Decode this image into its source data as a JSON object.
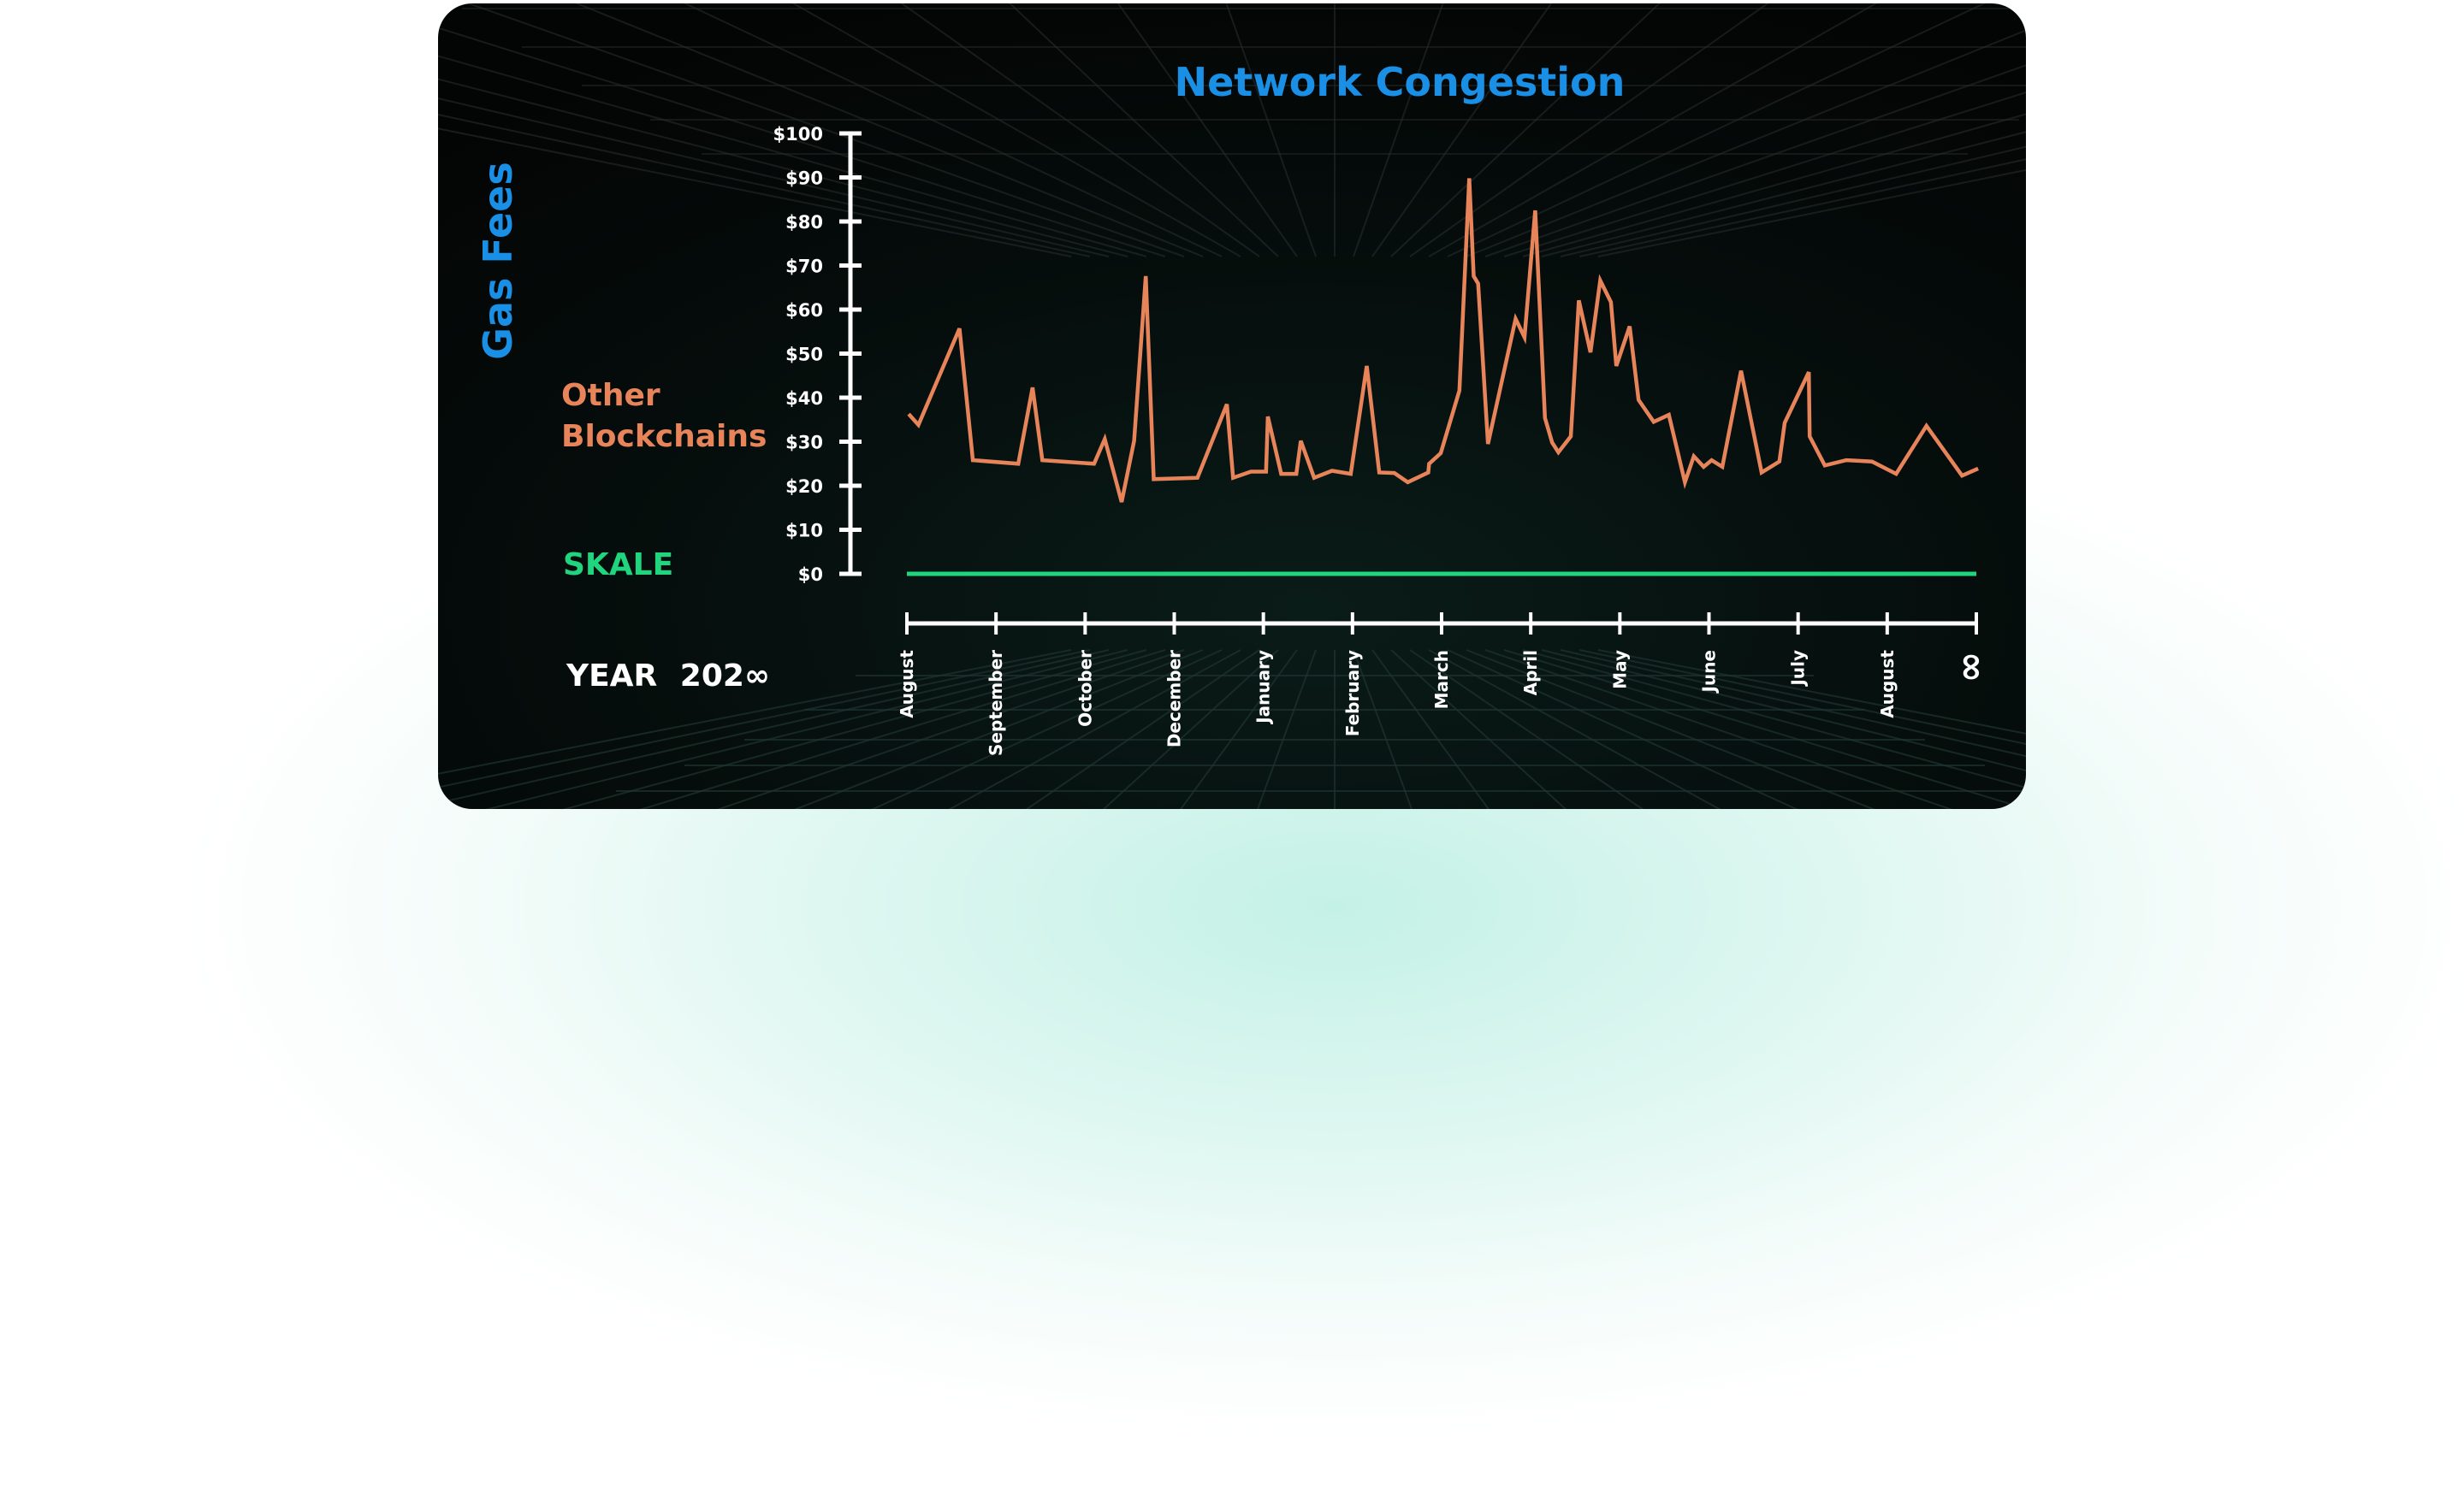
{
  "colors": {
    "title": "#1a8fe6",
    "other": "#e8845a",
    "skale": "#1fd67f",
    "axis": "#ffffff",
    "card": "#050a09"
  },
  "chart_data": {
    "type": "line",
    "title": "Network Congestion",
    "ylabel": "Gas Fees",
    "xlabel_prefix": "YEAR",
    "xlabel_year": "202",
    "xlabel_year_suffix": "∞",
    "ylim": [
      0,
      100
    ],
    "yticks": [
      "$0",
      "$10",
      "$20",
      "$30",
      "$40",
      "$50",
      "$60",
      "$70",
      "$80",
      "$90",
      "$100"
    ],
    "ytick_values": [
      0,
      10,
      20,
      30,
      40,
      50,
      60,
      70,
      80,
      90,
      100
    ],
    "xticks": [
      "August",
      "September",
      "October",
      "December",
      "January",
      "February",
      "March",
      "April",
      "May",
      "June",
      "July",
      "August",
      "∞"
    ],
    "x_unit": "month index (0 = first August tick)",
    "grid": false,
    "legend_placement": "left",
    "series": [
      {
        "name": "Other Blockchains",
        "label_lines": [
          "Other",
          "Blockchains"
        ],
        "x": [
          0.02,
          0.13,
          0.59,
          0.74,
          1.25,
          1.41,
          1.52,
          2.1,
          2.22,
          2.41,
          2.55,
          2.68,
          2.77,
          3.26,
          3.59,
          3.66,
          3.86,
          4.03,
          4.05,
          4.2,
          4.37,
          4.42,
          4.57,
          4.77,
          4.98,
          5.16,
          5.3,
          5.47,
          5.62,
          5.85,
          5.86,
          5.99,
          6.2,
          6.31,
          6.36,
          6.41,
          6.52,
          6.83,
          6.93,
          7.05,
          7.16,
          7.24,
          7.31,
          7.45,
          7.54,
          7.67,
          7.78,
          7.9,
          7.96,
          8.11,
          8.21,
          8.38,
          8.55,
          8.73,
          8.83,
          8.94,
          9.03,
          9.15,
          9.36,
          9.59,
          9.79,
          9.85,
          10.12,
          10.13,
          10.3,
          10.54,
          10.83,
          11.1,
          11.44,
          11.84,
          12.02
        ],
        "values": [
          36.3,
          33.8,
          55.7,
          25.8,
          25,
          42.3,
          25.8,
          25,
          30.6,
          16.3,
          30.2,
          67.6,
          21.5,
          21.8,
          38.5,
          21.8,
          23.2,
          23.2,
          35.7,
          22.7,
          22.7,
          30.2,
          21.8,
          23.4,
          22.7,
          47.2,
          23,
          22.9,
          20.8,
          23,
          25,
          27.4,
          41.6,
          89.8,
          67.6,
          65.9,
          29.5,
          57.9,
          53.7,
          82.5,
          35.4,
          29.8,
          27.6,
          31.2,
          62.1,
          50.3,
          66.6,
          61.7,
          47.2,
          56.2,
          39.5,
          34.5,
          36.1,
          20.8,
          26.7,
          24.3,
          25.8,
          24.3,
          46.1,
          23,
          25.5,
          34.3,
          45.8,
          31.2,
          24.6,
          25.8,
          25.5,
          22.7,
          33.6,
          22.3,
          23.9
        ]
      },
      {
        "name": "SKALE",
        "label_lines": [
          "SKALE"
        ],
        "x": [
          0,
          12
        ],
        "values": [
          0,
          0
        ]
      }
    ]
  }
}
